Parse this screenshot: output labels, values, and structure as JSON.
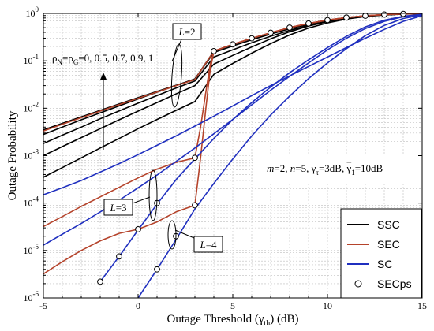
{
  "chart_data": {
    "type": "line",
    "title": "",
    "xlabel": "Outage Threshold (γth) (dB)",
    "ylabel": "Outage Probability",
    "xlim": [
      -5,
      15
    ],
    "ylim": [
      1e-06,
      1
    ],
    "yscale": "log",
    "xticks": [
      -5,
      0,
      5,
      10,
      15
    ],
    "grid": true,
    "legend_position": "bottom-right",
    "legend": [
      {
        "label": "SSC",
        "color": "#000000",
        "marker": "line"
      },
      {
        "label": "SEC",
        "color": "#b5432b",
        "marker": "line"
      },
      {
        "label": "SC",
        "color": "#1f2fbf",
        "marker": "line"
      },
      {
        "label": "SECps",
        "color": "#000000",
        "marker": "circle"
      }
    ],
    "series": [
      {
        "group": "SSC",
        "color": "#000000",
        "x": [
          -5,
          -4,
          -3,
          -2,
          -1,
          0,
          1,
          2,
          3,
          4,
          5,
          6,
          7,
          8,
          9,
          10,
          11,
          12,
          13,
          14,
          15
        ],
        "y": [
          0.0035,
          0.0048,
          0.0066,
          0.009,
          0.0123,
          0.0167,
          0.0226,
          0.0305,
          0.041,
          0.16,
          0.22,
          0.296,
          0.39,
          0.5,
          0.61,
          0.72,
          0.815,
          0.89,
          0.945,
          0.975,
          0.99
        ]
      },
      {
        "group": "SSC",
        "color": "#000000",
        "x": [
          -5,
          -4,
          -3,
          -2,
          -1,
          0,
          1,
          2,
          3,
          4,
          5,
          6,
          7,
          8,
          9,
          10,
          11,
          12,
          13,
          14,
          15
        ],
        "y": [
          0.0028,
          0.004,
          0.0057,
          0.008,
          0.0112,
          0.0157,
          0.0218,
          0.0302,
          0.0415,
          0.15,
          0.205,
          0.277,
          0.367,
          0.475,
          0.59,
          0.7,
          0.8,
          0.88,
          0.94,
          0.972,
          0.99
        ]
      },
      {
        "group": "SSC",
        "color": "#000000",
        "x": [
          -5,
          -4,
          -3,
          -2,
          -1,
          0,
          1,
          2,
          3,
          4,
          5,
          6,
          7,
          8,
          9,
          10,
          11,
          12,
          13,
          14,
          15
        ],
        "y": [
          0.0018,
          0.0027,
          0.004,
          0.006,
          0.0088,
          0.0128,
          0.0185,
          0.0266,
          0.0375,
          0.12,
          0.17,
          0.24,
          0.33,
          0.44,
          0.56,
          0.68,
          0.79,
          0.875,
          0.935,
          0.97,
          0.988
        ]
      },
      {
        "group": "SSC",
        "color": "#000000",
        "x": [
          -5,
          -4,
          -3,
          -2,
          -1,
          0,
          1,
          2,
          3,
          4,
          5,
          6,
          7,
          8,
          9,
          10,
          11,
          12,
          13,
          14,
          15
        ],
        "y": [
          0.001,
          0.00155,
          0.0024,
          0.0037,
          0.0057,
          0.0087,
          0.0132,
          0.02,
          0.03,
          0.085,
          0.13,
          0.196,
          0.29,
          0.41,
          0.54,
          0.67,
          0.78,
          0.87,
          0.93,
          0.968,
          0.988
        ]
      },
      {
        "group": "SSC",
        "color": "#000000",
        "x": [
          -5,
          -4,
          -3,
          -2,
          -1,
          0,
          1,
          2,
          3,
          4,
          5,
          6,
          7,
          8,
          9,
          10,
          11,
          12,
          13,
          14,
          15
        ],
        "y": [
          0.00035,
          0.00056,
          0.0009,
          0.00145,
          0.0023,
          0.0037,
          0.0058,
          0.009,
          0.0138,
          0.052,
          0.088,
          0.145,
          0.23,
          0.35,
          0.49,
          0.63,
          0.76,
          0.86,
          0.93,
          0.967,
          0.988
        ]
      },
      {
        "group": "SEC",
        "color": "#b5432b",
        "x": [
          -5,
          -4,
          -3,
          -2,
          -1,
          0,
          1,
          2,
          3,
          4,
          5,
          6,
          7,
          8,
          9,
          10,
          11,
          12,
          13,
          14,
          15
        ],
        "y": [
          0.0033,
          0.0046,
          0.0063,
          0.0087,
          0.0119,
          0.0162,
          0.022,
          0.0298,
          0.0402,
          0.16,
          0.222,
          0.298,
          0.392,
          0.502,
          0.612,
          0.722,
          0.817,
          0.891,
          0.946,
          0.976,
          0.991
        ]
      },
      {
        "group": "SEC",
        "color": "#b5432b",
        "x": [
          -5,
          -4,
          -3,
          -2,
          -1,
          0,
          1,
          2,
          3,
          3.3,
          3.6,
          3.8,
          4,
          5,
          6,
          7,
          8,
          9,
          10,
          11,
          12,
          13,
          14,
          15
        ],
        "y": [
          3.2e-05,
          5.2e-05,
          8.5e-05,
          0.000135,
          0.000215,
          0.00034,
          0.00052,
          0.00072,
          0.0009,
          0.004,
          0.025,
          0.08,
          0.16,
          0.222,
          0.298,
          0.392,
          0.502,
          0.612,
          0.722,
          0.817,
          0.891,
          0.946,
          0.976,
          0.991
        ]
      },
      {
        "group": "SEC",
        "color": "#b5432b",
        "x": [
          -5,
          -4,
          -3,
          -2,
          -1,
          0,
          1,
          2,
          3,
          3.3,
          3.6,
          3.8,
          4,
          5,
          6,
          7,
          8,
          9,
          10,
          11,
          12,
          13,
          14,
          15
        ],
        "y": [
          3.2e-06,
          5.8e-06,
          1e-05,
          1.6e-05,
          2.3e-05,
          2.8e-05,
          4e-05,
          6.5e-05,
          9e-05,
          0.0009,
          0.012,
          0.06,
          0.16,
          0.222,
          0.298,
          0.392,
          0.502,
          0.612,
          0.722,
          0.817,
          0.891,
          0.946,
          0.976,
          0.991
        ]
      },
      {
        "group": "SC",
        "color": "#1f2fbf",
        "x": [
          -5,
          -4,
          -3,
          -2,
          -1,
          0,
          1,
          2,
          3,
          4,
          5,
          6,
          7,
          8,
          9,
          10,
          11,
          12,
          13,
          14,
          15
        ],
        "y": [
          0.00015,
          0.00021,
          0.0003,
          0.00045,
          0.00068,
          0.00105,
          0.00165,
          0.0026,
          0.0042,
          0.0068,
          0.0112,
          0.0185,
          0.03,
          0.048,
          0.076,
          0.12,
          0.19,
          0.3,
          0.46,
          0.68,
          0.9
        ]
      },
      {
        "group": "SC",
        "color": "#1f2fbf",
        "x": [
          -5,
          -4,
          -3,
          -2,
          -1,
          0,
          1,
          2,
          3,
          4,
          5,
          6,
          7,
          8,
          9,
          10,
          11,
          12,
          13,
          14,
          15
        ],
        "y": [
          1.3e-05,
          2.2e-05,
          3.7e-05,
          6.5e-05,
          0.000115,
          0.00021,
          0.00039,
          0.00075,
          0.00145,
          0.0029,
          0.0058,
          0.0118,
          0.024,
          0.047,
          0.09,
          0.17,
          0.3,
          0.48,
          0.68,
          0.85,
          0.95
        ]
      },
      {
        "group": "SC",
        "color": "#1f2fbf",
        "x": [
          -2,
          -1,
          0,
          1,
          2,
          3,
          4,
          5,
          6,
          7,
          8,
          9,
          10,
          11,
          12,
          13,
          14,
          15
        ],
        "y": [
          2.2e-06,
          7.5e-06,
          2.7e-05,
          9.5e-05,
          0.00031,
          0.00085,
          0.0023,
          0.0058,
          0.0132,
          0.028,
          0.056,
          0.105,
          0.19,
          0.33,
          0.52,
          0.72,
          0.87,
          0.95
        ]
      },
      {
        "group": "SC",
        "color": "#1f2fbf",
        "x": [
          0,
          1,
          2,
          3,
          4,
          5,
          6,
          7,
          8,
          9,
          10,
          11,
          12,
          13,
          14,
          15
        ],
        "y": [
          1e-06,
          4e-06,
          1.7e-05,
          7.5e-05,
          0.00026,
          0.00085,
          0.0026,
          0.0072,
          0.018,
          0.042,
          0.09,
          0.18,
          0.34,
          0.56,
          0.78,
          0.93
        ]
      },
      {
        "group": "SECps",
        "color": "#000000",
        "marker": "circle",
        "x": [
          4,
          5,
          6,
          7,
          8,
          9,
          10,
          11,
          12,
          13,
          14
        ],
        "y": [
          0.16,
          0.222,
          0.298,
          0.392,
          0.502,
          0.612,
          0.722,
          0.817,
          0.891,
          0.946,
          0.976
        ]
      },
      {
        "group": "SECps",
        "color": "#000000",
        "marker": "circle",
        "x": [
          1,
          3
        ],
        "y": [
          0.0001,
          0.0009
        ]
      },
      {
        "group": "SECps",
        "color": "#000000",
        "marker": "circle",
        "x": [
          -2,
          -1,
          0,
          1,
          3
        ],
        "y": [
          2.2e-06,
          7.5e-06,
          2.8e-05,
          4e-06,
          9e-05
        ]
      },
      {
        "group": "SECps",
        "color": "#000000",
        "marker": "circle",
        "x": [
          2
        ],
        "y": [
          2e-05
        ]
      }
    ],
    "annotations": [
      {
        "type": "label",
        "text": "L=2",
        "parts": [
          {
            "t": "L",
            "i": true
          },
          {
            "t": "=2"
          }
        ]
      },
      {
        "type": "label",
        "text": "L=3",
        "parts": [
          {
            "t": "L",
            "i": true
          },
          {
            "t": "=3"
          }
        ]
      },
      {
        "type": "label",
        "text": "L=4",
        "parts": [
          {
            "t": "L",
            "i": true
          },
          {
            "t": "=4"
          }
        ]
      },
      {
        "type": "rho",
        "text": "ρN=ρG=0, 0.5, 0.7, 0.9, 1"
      },
      {
        "type": "params",
        "text": "m=2, n=5, γτ=3dB, γ̄1=10dB"
      }
    ]
  }
}
